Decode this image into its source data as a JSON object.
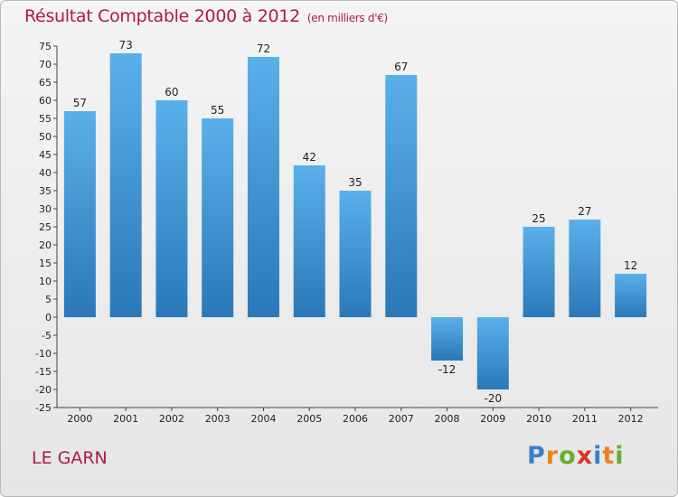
{
  "title": "Résultat Comptable 2000 à 2012",
  "subtitle": "(en milliers d'€)",
  "location": "LE GARN",
  "brand": "Proxiti",
  "colors": {
    "title": "#b0184a",
    "bar_top": "#5ab0ea",
    "bar_bottom": "#2a78b8",
    "brand_letters": [
      "#3a7fc8",
      "#e8831a",
      "#6aac2c",
      "#d9342b",
      "#3a7fc8",
      "#e8831a",
      "#6aac2c"
    ]
  },
  "chart_data": {
    "type": "bar",
    "title": "Résultat Comptable 2000 à 2012",
    "unit": "(en milliers d'€)",
    "categories": [
      "2000",
      "2001",
      "2002",
      "2003",
      "2004",
      "2005",
      "2006",
      "2007",
      "2008",
      "2009",
      "2010",
      "2011",
      "2012"
    ],
    "values": [
      57,
      73,
      60,
      55,
      72,
      42,
      35,
      67,
      -12,
      -20,
      25,
      27,
      12
    ],
    "ylim": [
      -25,
      75
    ],
    "ytick_step": 5,
    "grid": false,
    "xlabel": "",
    "ylabel": ""
  }
}
